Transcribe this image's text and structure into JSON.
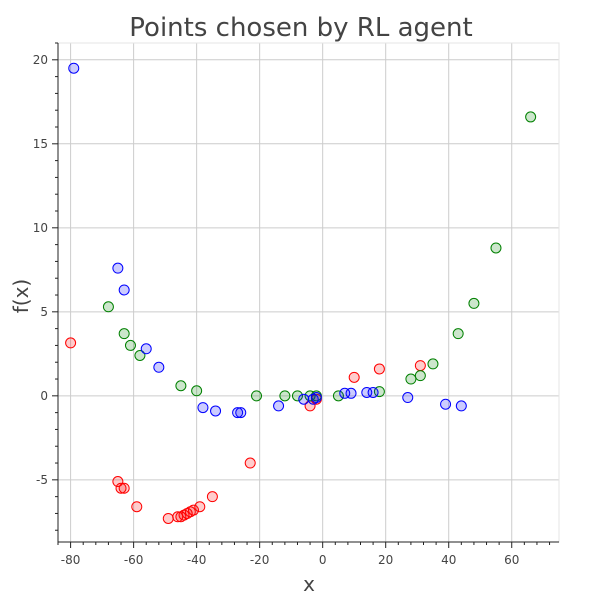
{
  "chart_data": {
    "type": "scatter",
    "title": "Points chosen by RL agent",
    "xlabel": "x",
    "ylabel": "f(x)",
    "xlim": [
      -84,
      75
    ],
    "ylim": [
      -8.7,
      21
    ],
    "x_ticks": [
      -80,
      -60,
      -40,
      -20,
      0,
      20,
      40,
      60
    ],
    "x_tick_labels": [
      "-80",
      "-60",
      "-40",
      "-20",
      "0",
      "20",
      "40",
      "60"
    ],
    "y_ticks": [
      -5,
      0,
      5,
      10,
      15,
      20
    ],
    "y_tick_labels": [
      "-5",
      "0",
      "5",
      "10",
      "15",
      "20"
    ],
    "grid": true,
    "series": [
      {
        "color": "#ff0000",
        "fill": "rgba(255,0,0,0.2)",
        "x": [
          -80,
          -65,
          -64,
          -63,
          -59,
          -49,
          -46,
          -45,
          -44,
          -43,
          -42,
          -41,
          -39,
          -35,
          -23,
          -4,
          -2,
          10,
          18,
          31
        ],
        "y": [
          3.15,
          -5.1,
          -5.5,
          -5.5,
          -6.6,
          -7.3,
          -7.2,
          -7.2,
          -7.1,
          -7.0,
          -6.9,
          -6.8,
          -6.6,
          -6.0,
          -4.0,
          -0.6,
          -0.2,
          1.1,
          1.6,
          1.8
        ]
      },
      {
        "color": "#008000",
        "fill": "rgba(0,128,0,0.2)",
        "x": [
          -68,
          -63,
          -61,
          -58,
          -45,
          -40,
          -21,
          -12,
          -8,
          -4,
          -2,
          5,
          18,
          28,
          31,
          35,
          43,
          48,
          55,
          66
        ],
        "y": [
          5.3,
          3.7,
          3.0,
          2.4,
          0.6,
          0.3,
          0.0,
          0.0,
          0.0,
          0.0,
          0.0,
          0.0,
          0.25,
          1.0,
          1.2,
          1.9,
          3.7,
          5.5,
          8.8,
          16.6
        ]
      },
      {
        "color": "#0000ff",
        "fill": "rgba(0,0,255,0.2)",
        "x": [
          -79,
          -65,
          -63,
          -56,
          -52,
          -38,
          -34,
          -27,
          -26,
          -14,
          -6,
          -3,
          -2,
          7,
          9,
          14,
          16,
          27,
          39,
          44
        ],
        "y": [
          19.5,
          7.6,
          6.3,
          2.8,
          1.7,
          -0.7,
          -0.9,
          -1.0,
          -1.0,
          -0.6,
          -0.2,
          -0.2,
          -0.1,
          0.15,
          0.15,
          0.2,
          0.2,
          -0.1,
          -0.5,
          -0.6
        ]
      }
    ]
  }
}
